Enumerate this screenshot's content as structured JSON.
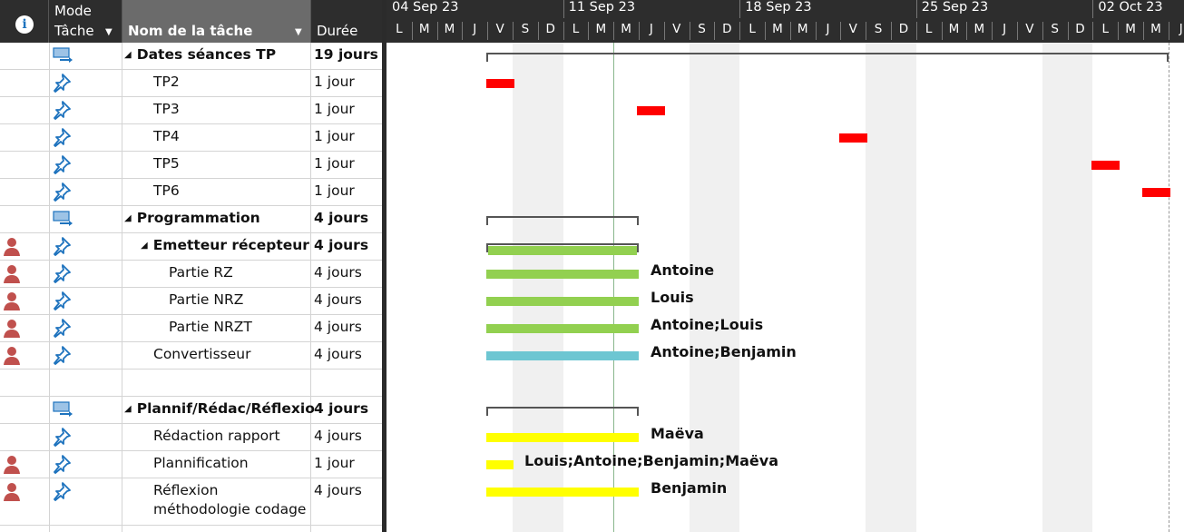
{
  "header": {
    "info_icon_glyph": "i",
    "mode_line1": "Mode",
    "mode_line2": "Tâche",
    "name_label": "Nom de la tâche",
    "duration_label": "Durée",
    "dropdown_glyph": "▼"
  },
  "timeline": {
    "weeks": [
      "04 Sep 23",
      "11 Sep 23",
      "18 Sep 23",
      "25 Sep 23",
      "02 Oct 23"
    ],
    "days": [
      "L",
      "M",
      "M",
      "J",
      "V",
      "S",
      "D"
    ],
    "last_days": [
      "L",
      "M",
      "M",
      "J"
    ]
  },
  "tasks": [
    {
      "name": "Dates séances TP",
      "duration": "19 jours",
      "summary": true,
      "level": 0,
      "resource_icon": false,
      "mode_icon": "auto-schedule-icon"
    },
    {
      "name": "TP2",
      "duration": "1 jour",
      "summary": false,
      "level": 1,
      "resource_icon": false,
      "mode_icon": "manual-schedule-pin-icon"
    },
    {
      "name": "TP3",
      "duration": "1 jour",
      "summary": false,
      "level": 1,
      "resource_icon": false,
      "mode_icon": "manual-schedule-pin-icon"
    },
    {
      "name": "TP4",
      "duration": "1 jour",
      "summary": false,
      "level": 1,
      "resource_icon": false,
      "mode_icon": "manual-schedule-pin-icon"
    },
    {
      "name": "TP5",
      "duration": "1 jour",
      "summary": false,
      "level": 1,
      "resource_icon": false,
      "mode_icon": "manual-schedule-pin-icon"
    },
    {
      "name": "TP6",
      "duration": "1 jour",
      "summary": false,
      "level": 1,
      "resource_icon": false,
      "mode_icon": "manual-schedule-pin-icon"
    },
    {
      "name": "Programmation",
      "duration": "4 jours",
      "summary": true,
      "level": 0,
      "resource_icon": false,
      "mode_icon": "auto-schedule-icon"
    },
    {
      "name": "Emetteur récepteur",
      "duration": "4 jours",
      "summary": true,
      "level": 1,
      "resource_icon": true,
      "mode_icon": "manual-schedule-pin-icon"
    },
    {
      "name": "Partie RZ",
      "duration": "4 jours",
      "summary": false,
      "level": 2,
      "resource_icon": true,
      "mode_icon": "manual-schedule-pin-icon",
      "resources": "Antoine"
    },
    {
      "name": "Partie NRZ",
      "duration": "4 jours",
      "summary": false,
      "level": 2,
      "resource_icon": true,
      "mode_icon": "manual-schedule-pin-icon",
      "resources": "Louis"
    },
    {
      "name": "Partie NRZT",
      "duration": "4 jours",
      "summary": false,
      "level": 2,
      "resource_icon": true,
      "mode_icon": "manual-schedule-pin-icon",
      "resources": "Antoine;Louis"
    },
    {
      "name": "Convertisseur",
      "duration": "4 jours",
      "summary": false,
      "level": 1,
      "resource_icon": true,
      "mode_icon": "manual-schedule-pin-icon",
      "resources": "Antoine;Benjamin"
    },
    {
      "name": "",
      "duration": "",
      "summary": false,
      "level": 0,
      "resource_icon": false,
      "mode_icon": ""
    },
    {
      "name": "Plannif/Rédac/Réflexio",
      "duration": "4 jours",
      "summary": true,
      "level": 0,
      "resource_icon": false,
      "mode_icon": "auto-schedule-icon"
    },
    {
      "name": "Rédaction rapport",
      "duration": "4 jours",
      "summary": false,
      "level": 1,
      "resource_icon": false,
      "mode_icon": "manual-schedule-pin-icon",
      "resources": "Maëva"
    },
    {
      "name": "Plannification",
      "duration": "1 jour",
      "summary": false,
      "level": 1,
      "resource_icon": true,
      "mode_icon": "manual-schedule-pin-icon",
      "resources": "Louis;Antoine;Benjamin;Maëva"
    },
    {
      "name": "Réflexion",
      "name_line2": "méthodologie codage",
      "duration": "4 jours",
      "summary": false,
      "level": 1,
      "resource_icon": true,
      "mode_icon": "manual-schedule-pin-icon",
      "resources": "Benjamin"
    }
  ],
  "colors": {
    "header_bg": "#2d2d2d",
    "selected_header_bg": "#6b6b6b",
    "tp_bar": "#ff0000",
    "green_bar": "#92d050",
    "teal_bar": "#6dc6d2",
    "yellow_bar": "#ffff00",
    "summary_bracket": "#555555",
    "resource_icon": "#c0504d",
    "mode_icon": "#1e73be"
  }
}
